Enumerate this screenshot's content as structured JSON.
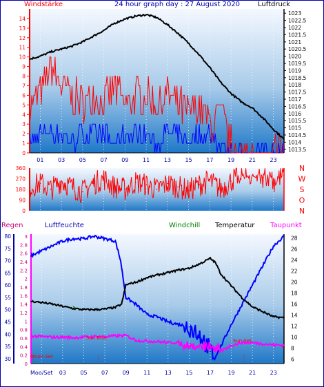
{
  "header": {
    "left_label": "Windstärke",
    "title": "24 hour graph day : 27 August 2020",
    "right_label": "Luftdruck"
  },
  "colors": {
    "wind": "#ff0000",
    "gust_bar": "#0000ff",
    "pressure": "#000000",
    "humidity": "#0000ff",
    "temperature": "#000000",
    "dewpoint": "#ff00ff",
    "windchill": "#008000",
    "rain_label": "#cc0077",
    "sun_text": "#ff0000"
  },
  "x_ticks": [
    "01",
    "03",
    "05",
    "07",
    "09",
    "11",
    "13",
    "15",
    "17",
    "19",
    "21",
    "23"
  ],
  "chart_data": [
    {
      "id": "wind_pressure",
      "type": "line",
      "ylabel_left": "Windstärke",
      "ylabel_right": "Luftdruck",
      "y_left_ticks": [
        "0",
        "1",
        "2",
        "3",
        "4",
        "5",
        "6",
        "7",
        "8",
        "9",
        "10",
        "11",
        "12",
        "13",
        "14"
      ],
      "y_right_ticks": [
        "1013.5",
        "1014",
        "1014.5",
        "1015",
        "1015.5",
        "1016",
        "1016.5",
        "1017",
        "1017.5",
        "1018",
        "1018.5",
        "1019",
        "1019.5",
        "1020",
        "1020.5",
        "1021",
        "1021.5",
        "1022",
        "1022.5",
        "1023"
      ],
      "y_left_range": [
        0,
        15
      ],
      "y_right_range": [
        1013.25,
        1023.3
      ],
      "series": [
        {
          "name": "Luftdruck",
          "x": [
            0,
            1,
            2,
            3,
            4,
            5,
            6,
            7,
            8,
            9,
            10,
            11,
            12,
            13,
            14,
            15,
            16,
            17,
            18,
            19,
            20,
            21,
            22,
            23,
            24
          ],
          "values": [
            1019.8,
            1020.0,
            1020.3,
            1020.5,
            1020.7,
            1021.0,
            1021.4,
            1021.8,
            1022.3,
            1022.6,
            1022.8,
            1022.9,
            1022.7,
            1022.2,
            1021.6,
            1020.9,
            1020.1,
            1019.2,
            1018.2,
            1017.4,
            1016.8,
            1016.4,
            1015.7,
            1014.9,
            1014.2
          ]
        },
        {
          "name": "Windstärke",
          "x": [
            0,
            1,
            2,
            3,
            4,
            5,
            6,
            7,
            8,
            9,
            10,
            11,
            12,
            13,
            14,
            15,
            16,
            17,
            18,
            19,
            20,
            21,
            22,
            23,
            24
          ],
          "values": [
            5,
            6,
            9,
            7,
            6,
            5,
            6,
            5,
            7,
            5,
            6,
            6,
            5,
            6,
            5,
            4,
            5,
            3,
            4,
            1,
            0,
            0,
            0,
            1,
            1
          ]
        },
        {
          "name": "Böen",
          "x": [
            0,
            1,
            2,
            3,
            4,
            5,
            6,
            7,
            8,
            9,
            10,
            11,
            12,
            13,
            14,
            15,
            16,
            17,
            18,
            19,
            20,
            21,
            22,
            23,
            24
          ],
          "values": [
            1,
            2,
            2,
            2,
            1,
            2,
            2,
            2,
            1,
            2,
            2,
            2,
            1,
            2,
            2,
            1,
            2,
            2,
            1,
            0,
            0,
            0,
            0,
            0,
            1
          ]
        }
      ]
    },
    {
      "id": "wind_direction",
      "type": "line",
      "y_left_ticks": [
        "0",
        "90",
        "180",
        "270",
        "360"
      ],
      "y_right_labels": [
        "N",
        "W",
        "S",
        "O",
        "N"
      ],
      "y_range": [
        0,
        360
      ],
      "series": [
        {
          "name": "Windrichtung",
          "x": [
            0,
            1,
            2,
            3,
            4,
            5,
            6,
            7,
            8,
            9,
            10,
            11,
            12,
            13,
            14,
            15,
            16,
            17,
            18,
            19,
            20,
            21,
            22,
            23,
            24
          ],
          "values": [
            200,
            230,
            180,
            250,
            200,
            160,
            230,
            270,
            200,
            180,
            240,
            220,
            180,
            230,
            200,
            170,
            220,
            250,
            180,
            250,
            320,
            300,
            280,
            250,
            300
          ]
        }
      ]
    },
    {
      "id": "temperature_humidity",
      "type": "line",
      "labels": {
        "rain": "Regen",
        "humidity": "Luftfeuchte",
        "windchill": "Windchill",
        "temperature": "Temperatur",
        "dewpoint": "Taupunkt"
      },
      "y_rain_ticks": [
        "0",
        "0.2",
        "0.4",
        "0.6",
        "0.8",
        "1",
        "1.2",
        "1.4",
        "1.6",
        "1.8",
        "2",
        "2.2",
        "2.4",
        "2.6",
        "2.8",
        "3"
      ],
      "y_humidity_ticks": [
        "30",
        "35",
        "40",
        "45",
        "50",
        "55",
        "60",
        "65",
        "70",
        "75",
        "80"
      ],
      "y_temp_ticks": [
        "6",
        "8",
        "10",
        "12",
        "14",
        "16",
        "18",
        "20",
        "22",
        "24",
        "26",
        "28"
      ],
      "y_temp_range": [
        5.2,
        28.7
      ],
      "series": [
        {
          "name": "Temperatur",
          "x": [
            0,
            1,
            2,
            3,
            4,
            5,
            6,
            7,
            8,
            8.6,
            9,
            10,
            11,
            12,
            13,
            14,
            15,
            16,
            17,
            17.5,
            18,
            19,
            20,
            21,
            22,
            23,
            24
          ],
          "values": [
            16.5,
            16.3,
            16.0,
            15.6,
            15.2,
            15.0,
            15.0,
            15.1,
            15.4,
            16.0,
            19.5,
            20.0,
            20.8,
            21.3,
            21.7,
            22.2,
            22.5,
            23.3,
            24.3,
            23.5,
            21.5,
            19.3,
            17.2,
            15.5,
            14.6,
            13.7,
            13.5
          ]
        },
        {
          "name": "Luftfeuchte",
          "x": [
            0,
            1,
            2,
            3,
            4,
            5,
            6,
            7,
            8,
            8.5,
            9,
            10,
            11,
            12,
            13,
            14,
            15,
            16,
            17,
            17.5,
            18,
            19,
            20,
            21,
            22,
            23,
            24
          ],
          "values": [
            72,
            74,
            76,
            78,
            79,
            79,
            80,
            79,
            78,
            70,
            55,
            52,
            48,
            47,
            45,
            44,
            43,
            40,
            33,
            31,
            35,
            44,
            52,
            60,
            68,
            76,
            80
          ]
        },
        {
          "name": "Taupunkt",
          "x": [
            0,
            1,
            2,
            3,
            4,
            5,
            6,
            7,
            8,
            9,
            10,
            11,
            12,
            13,
            14,
            15,
            16,
            17,
            18,
            19,
            20,
            21,
            22,
            23,
            24
          ],
          "values": [
            10.2,
            10.1,
            10.0,
            10.0,
            9.9,
            10.0,
            10.1,
            10.1,
            10.2,
            10.3,
            9.4,
            9.3,
            9.2,
            9.0,
            9.1,
            8.5,
            8.0,
            8.4,
            7.5,
            8.5,
            9.0,
            9.0,
            8.8,
            8.6,
            8.5
          ]
        },
        {
          "name": "Windchill",
          "x": [
            4.0,
            4.2
          ],
          "values": [
            15.6,
            15.2
          ]
        }
      ],
      "annotations": {
        "moon_set": "Moon Set",
        "sun_rise": "Sun Rise",
        "sun_set": "Sun Set",
        "moon_set_hour": 0.2,
        "sun_rise_hour": 6.4,
        "sun_set_hour": 20.2
      },
      "x_first_label": "Moo/Set"
    }
  ]
}
